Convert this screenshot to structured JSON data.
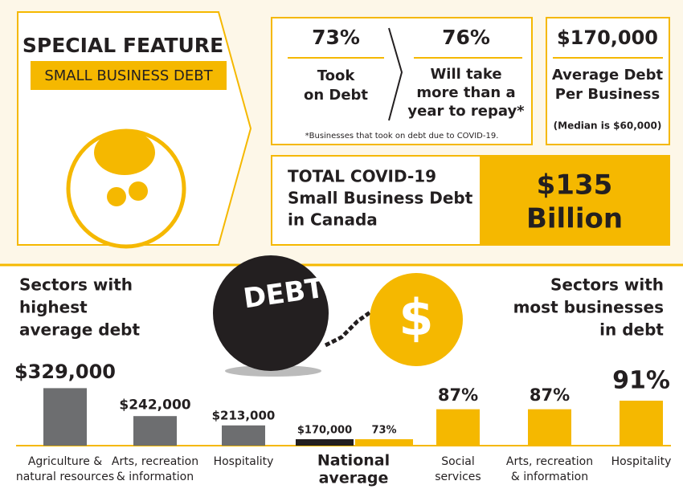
{
  "header": {
    "title": "SPECIAL FEATURE",
    "subtitle": "SMALL BUSINESS DEBT"
  },
  "stats": [
    {
      "label": "73%",
      "lines": [
        "Took",
        "on Debt"
      ]
    },
    {
      "label": "76%",
      "lines": [
        "Will take",
        "more than a",
        "year to repay*"
      ]
    }
  ],
  "footnote": "*Businesses that took on debt due to COVID-19.",
  "average": {
    "label": "$170,000",
    "lines": [
      "Average Debt",
      "Per Business"
    ],
    "note": "(Median is $60,000)"
  },
  "total": {
    "lines": [
      "TOTAL COVID-19",
      "Small Business Debt",
      "in Canada"
    ],
    "value_lines": [
      "$135",
      "Billion"
    ]
  },
  "icons": {
    "ball": "DEBT",
    "coin": "$"
  },
  "chart_data": [
    {
      "type": "bar",
      "title": [
        "Sectors with",
        "highest",
        "average debt"
      ],
      "categories": [
        [
          "Agriculture &",
          "natural resources"
        ],
        [
          "Arts, recreation",
          "& information"
        ],
        [
          "Hospitality"
        ]
      ],
      "values": [
        329000,
        242000,
        213000
      ],
      "value_labels": [
        "$329,000",
        "$242,000",
        "$213,000"
      ],
      "color": "#6d6e70",
      "ylim": [
        150000,
        400000
      ]
    },
    {
      "type": "bar",
      "title": [
        "Sectors with",
        "most businesses",
        "in debt"
      ],
      "categories": [
        [
          "Social",
          "services"
        ],
        [
          "Arts, recreation",
          "& information"
        ],
        [
          "Hospitality"
        ]
      ],
      "values": [
        87,
        87,
        91
      ],
      "value_labels": [
        "87%",
        "87%",
        "91%"
      ],
      "color": "#f5b800",
      "ylim": [
        70,
        100
      ]
    }
  ],
  "national_average": {
    "label_lines": [
      "National",
      "average"
    ],
    "values": [
      170000,
      73
    ],
    "value_labels": [
      "$170,000",
      "73%"
    ],
    "colors": [
      "#231f20",
      "#f5b800"
    ]
  }
}
